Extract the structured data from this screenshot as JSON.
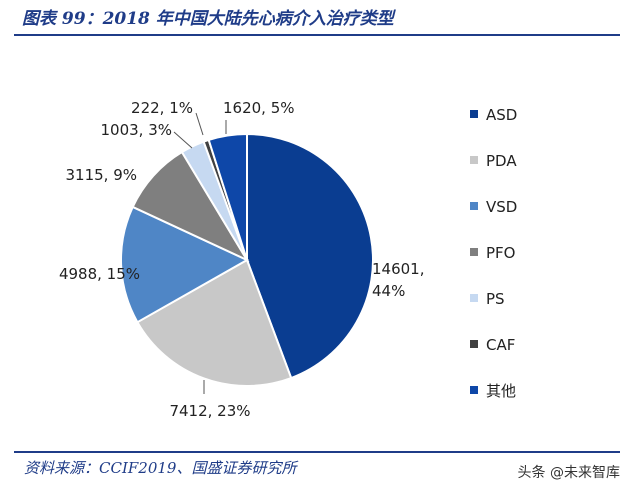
{
  "title": "图表 99：2018 年中国大陆先心病介入治疗类型",
  "source": "资料来源：CCIF2019、国盛证券研究所",
  "watermark": "头条 @未来智库",
  "chart_data": {
    "type": "pie",
    "title": "图表 99：2018 年中国大陆先心病介入治疗类型",
    "legend_position": "right",
    "slices": [
      {
        "name": "ASD",
        "value": 14601,
        "percent": 44,
        "label": [
          "14601,",
          "44%"
        ],
        "color": "#0a3d91"
      },
      {
        "name": "PDA",
        "value": 7412,
        "percent": 23,
        "label": [
          "7412, 23%"
        ],
        "color": "#c8c8c8"
      },
      {
        "name": "VSD",
        "value": 4988,
        "percent": 15,
        "label": [
          "4988, 15%"
        ],
        "color": "#4f86c6"
      },
      {
        "name": "PFO",
        "value": 3115,
        "percent": 9,
        "label": [
          "3115, 9%"
        ],
        "color": "#7f7f7f"
      },
      {
        "name": "PS",
        "value": 1003,
        "percent": 3,
        "label": [
          "1003, 3%"
        ],
        "color": "#c6d9f1"
      },
      {
        "name": "CAF",
        "value": 222,
        "percent": 1,
        "label": [
          "222, 1%"
        ],
        "color": "#404040"
      },
      {
        "name": "其他",
        "value": 1620,
        "percent": 5,
        "label": [
          "1620, 5%"
        ],
        "color": "#0e47a8"
      }
    ]
  }
}
